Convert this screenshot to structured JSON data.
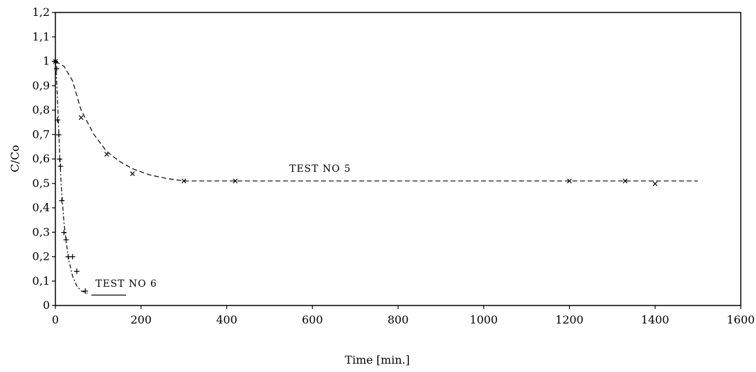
{
  "chart_data": {
    "type": "scatter",
    "title": "",
    "xlabel": "Time [min.]",
    "ylabel": "C/Co",
    "xlim": [
      0,
      1600
    ],
    "ylim": [
      0,
      1.2
    ],
    "x_ticks": [
      "0",
      "200",
      "400",
      "600",
      "800",
      "1000",
      "1200",
      "1400",
      "1600"
    ],
    "y_ticks": [
      "0",
      "0,1",
      "0,2",
      "0,3",
      "0,4",
      "0,5",
      "0,6",
      "0,7",
      "0,8",
      "0,9",
      "1",
      "1,1",
      "1,2"
    ],
    "grid": false,
    "series": [
      {
        "name": "TEST NO 5",
        "marker": "×",
        "line_style": "dashed",
        "x": [
          0,
          60,
          120,
          180,
          300,
          420,
          1200,
          1330,
          1400
        ],
        "y": [
          1.0,
          0.77,
          0.62,
          0.54,
          0.51,
          0.51,
          0.51,
          0.51,
          0.5
        ],
        "fit_x": [
          0,
          20,
          40,
          60,
          90,
          120,
          150,
          180,
          220,
          260,
          300,
          360,
          420,
          600,
          800,
          1000,
          1200,
          1400,
          1500
        ],
        "fit_y": [
          1.0,
          0.98,
          0.92,
          0.8,
          0.7,
          0.63,
          0.59,
          0.56,
          0.535,
          0.52,
          0.51,
          0.51,
          0.51,
          0.51,
          0.51,
          0.51,
          0.51,
          0.51,
          0.51
        ]
      },
      {
        "name": "TEST NO 6",
        "marker": "+",
        "line_style": "dash-dot",
        "x": [
          0,
          3,
          5,
          8,
          10,
          12,
          15,
          20,
          25,
          30,
          40,
          50,
          70
        ],
        "y": [
          1.0,
          0.97,
          0.76,
          0.7,
          0.6,
          0.57,
          0.43,
          0.3,
          0.27,
          0.2,
          0.2,
          0.14,
          0.06
        ],
        "fit_x": [
          0,
          3,
          6,
          10,
          14,
          20,
          26,
          32,
          40,
          50,
          60,
          75
        ],
        "fit_y": [
          1.0,
          0.92,
          0.8,
          0.62,
          0.48,
          0.34,
          0.25,
          0.18,
          0.12,
          0.08,
          0.06,
          0.05
        ]
      }
    ]
  }
}
